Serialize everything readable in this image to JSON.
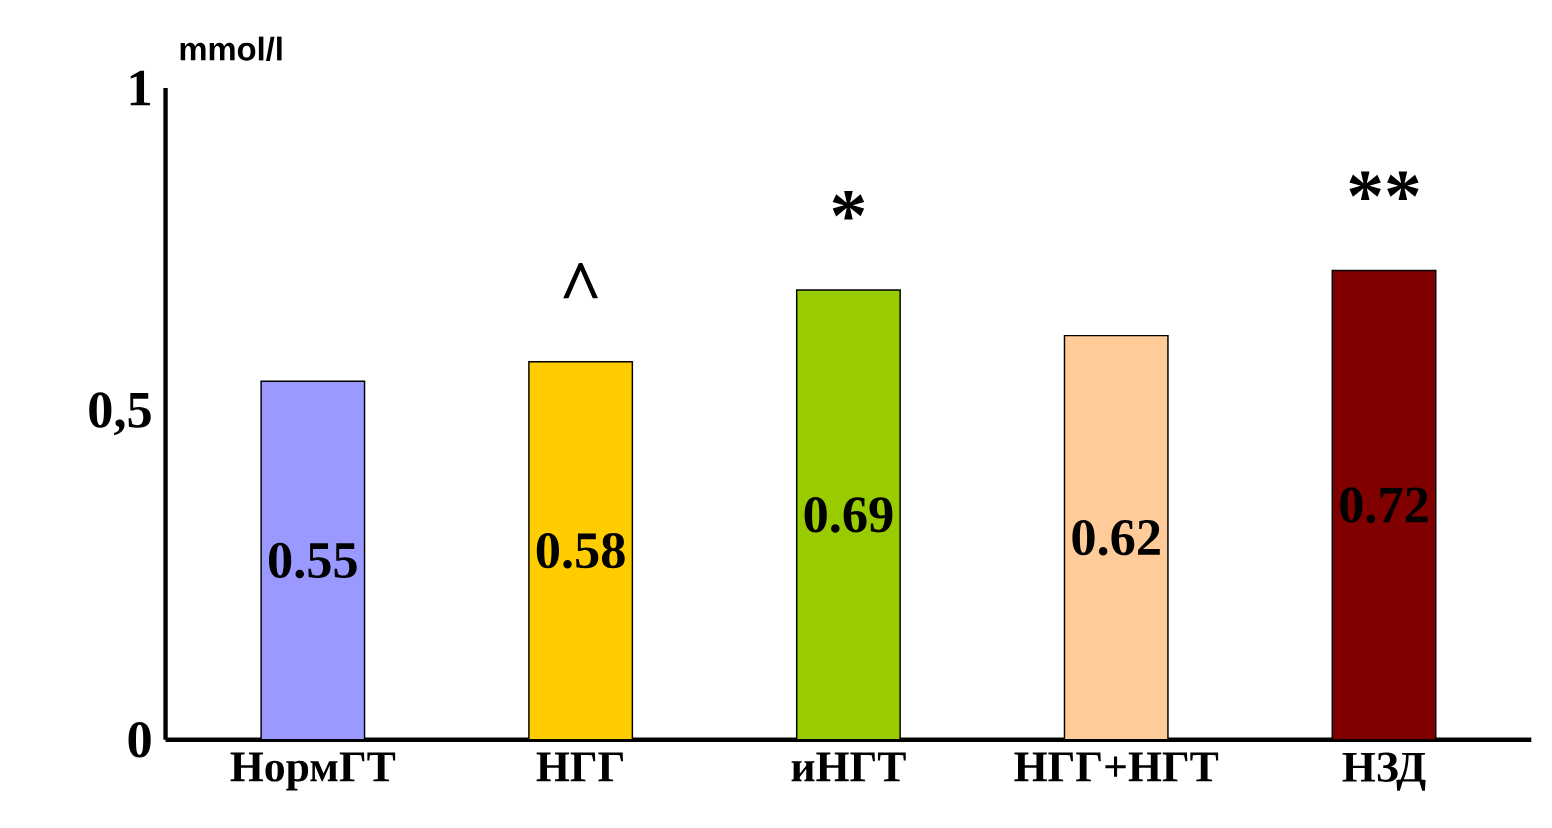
{
  "chart_data": {
    "type": "bar",
    "ylabel": "mmol/l",
    "categories": [
      "НормГТ",
      "НГГ",
      "иНГТ",
      "НГГ+НГТ",
      "НЗД"
    ],
    "values": [
      0.55,
      0.58,
      0.69,
      0.62,
      0.72
    ],
    "value_labels": [
      "0.55",
      "0.58",
      "0.69",
      "0.62",
      "0.72"
    ],
    "colors": [
      "#9999ff",
      "#ffcc00",
      "#99cc00",
      "#ffcc99",
      "#800000"
    ],
    "ylim": [
      0,
      1
    ],
    "yticks": [
      0,
      {
        "value": 0.5,
        "label": "0,5"
      },
      1
    ],
    "annotations": [
      {
        "text": "^",
        "x": "НГГ",
        "y": 0.58
      },
      {
        "text": "*",
        "x": "иНГТ",
        "y": 0.69
      },
      {
        "text": "**",
        "x": "НЗД",
        "y": 0.72
      }
    ]
  }
}
